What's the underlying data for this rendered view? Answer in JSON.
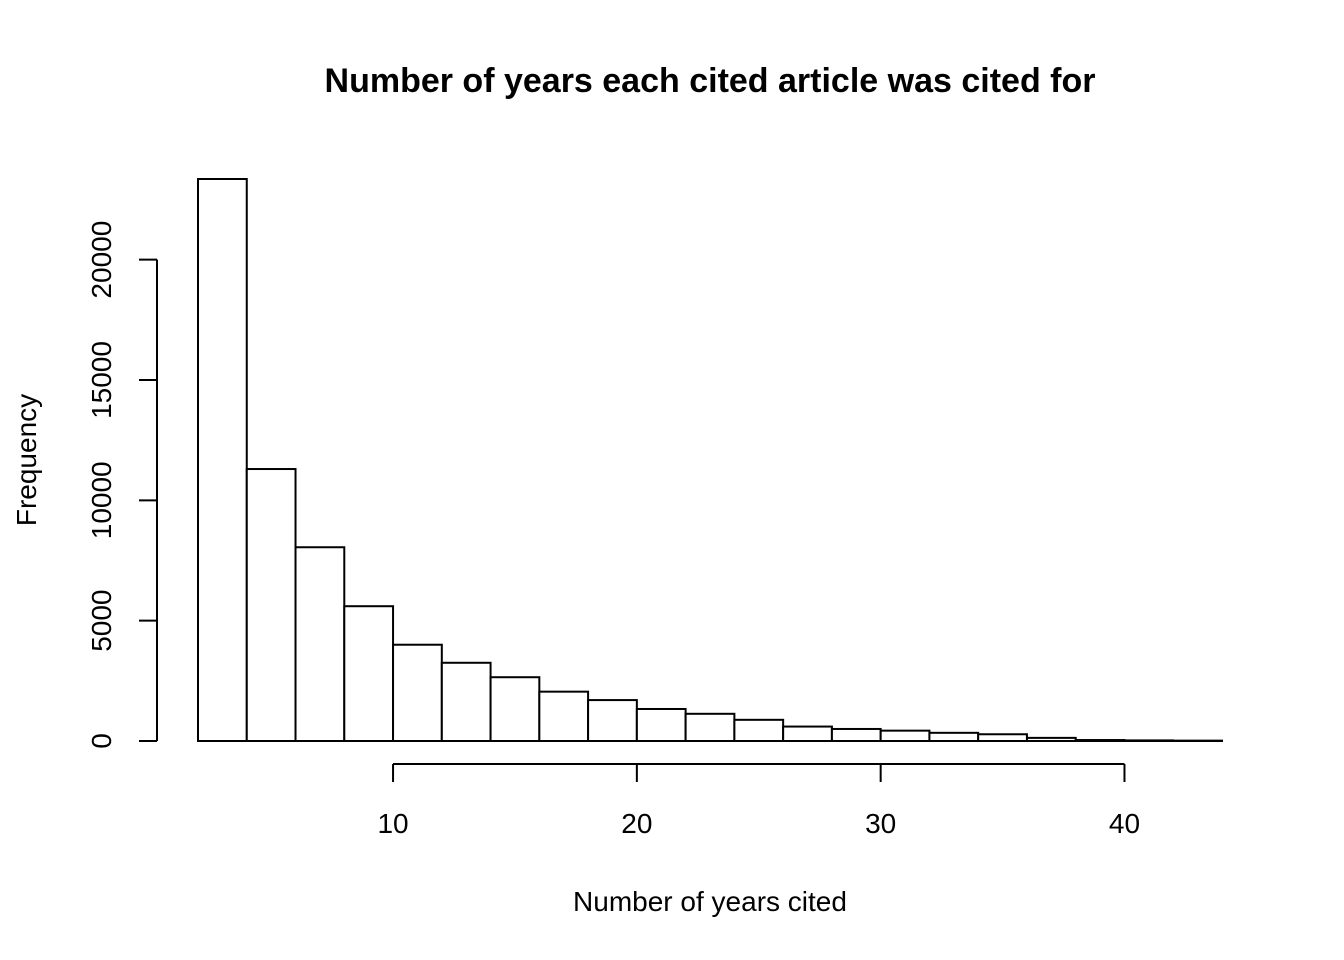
{
  "chart_data": {
    "type": "bar",
    "title": "Number of years each cited article was cited for",
    "xlabel": "Number of years cited",
    "ylabel": "Frequency",
    "bin_edges": [
      2,
      4,
      6,
      8,
      10,
      12,
      14,
      16,
      18,
      20,
      22,
      24,
      26,
      28,
      30,
      32,
      34,
      36,
      38,
      40,
      42,
      44
    ],
    "values": [
      23350,
      11300,
      8050,
      5600,
      4000,
      3250,
      2650,
      2050,
      1700,
      1330,
      1130,
      880,
      600,
      500,
      430,
      340,
      280,
      130,
      40,
      25,
      15
    ],
    "xticks": [
      10,
      20,
      30,
      40
    ],
    "yticks": [
      0,
      5000,
      10000,
      15000,
      20000
    ],
    "xlim": [
      2,
      44
    ],
    "ylim": [
      0,
      23350
    ],
    "grid": false,
    "bar_fill": "#ffffff",
    "bar_stroke": "#000000"
  }
}
